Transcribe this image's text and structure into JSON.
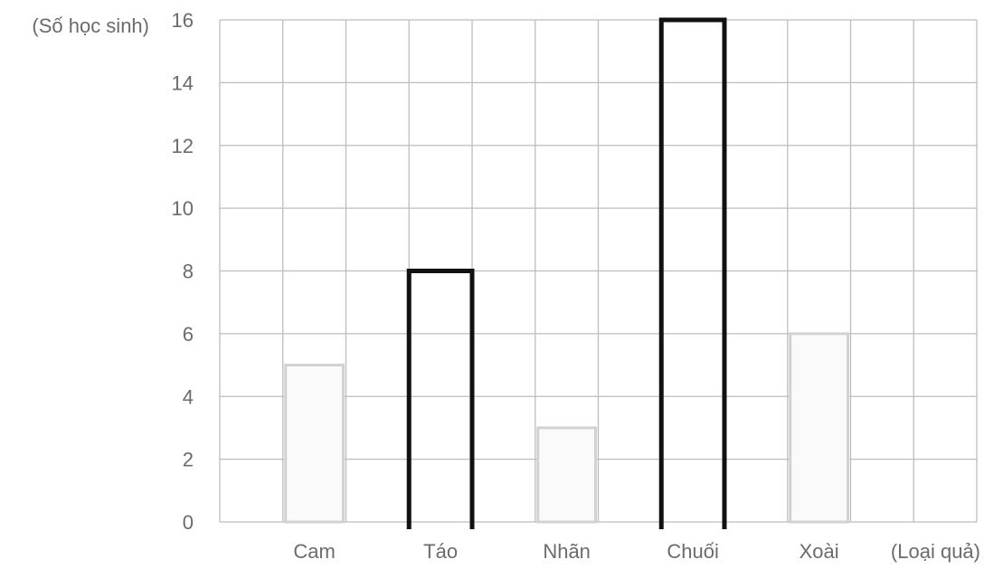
{
  "chart_data": {
    "type": "bar",
    "categories": [
      "Cam",
      "Táo",
      "Nhãn",
      "Chuối",
      "Xoài"
    ],
    "values": [
      5,
      8,
      3,
      16,
      6
    ],
    "highlighted": [
      false,
      true,
      false,
      true,
      false
    ],
    "ylabel": "(Số học sinh)",
    "xlabel": "(Loại quả)",
    "ylim": [
      0,
      16
    ],
    "yticks": [
      0,
      2,
      4,
      6,
      8,
      10,
      12,
      14,
      16
    ],
    "grid": true
  },
  "colors": {
    "grid": "#bdbdbd",
    "text": "#6b6b6b",
    "bar_outline": "#d2d2d2",
    "bar_fill": "#fafafa",
    "highlight_outline": "#111111"
  }
}
